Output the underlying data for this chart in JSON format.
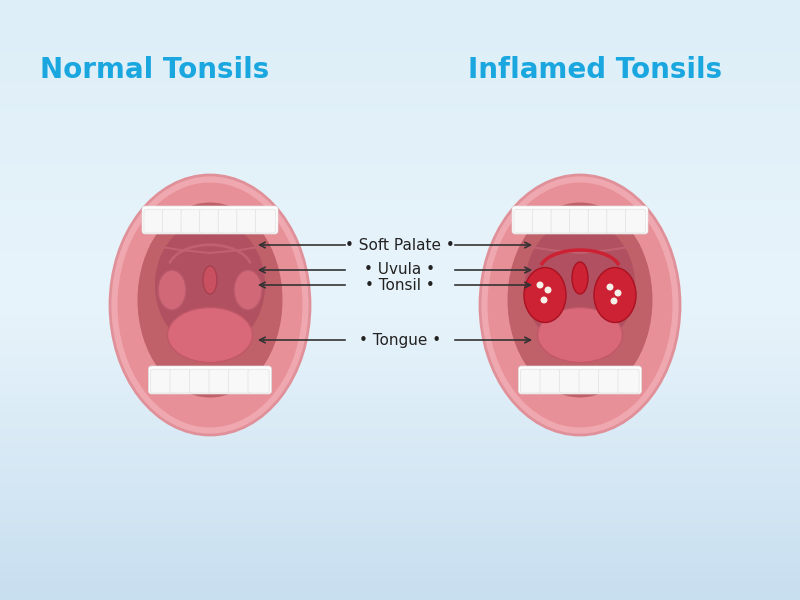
{
  "title_left": "Normal Tonsils",
  "title_right": "Inflamed Tonsils",
  "title_color": "#1aa7e0",
  "title_fontsize": 20,
  "bg_color_top": "#ddeef8",
  "bg_color_bottom": "#c8e0ef",
  "labels": [
    "Soft Palate",
    "Uvula",
    "Tonsil",
    "Tongue"
  ],
  "label_color": "#222222",
  "label_fontsize": 11,
  "outer_lip_color": "#e8848a",
  "inner_mouth_color": "#e06070",
  "throat_color": "#c85060",
  "teeth_color": "#ffffff",
  "tongue_color": "#d96878",
  "normal_tonsil_color": "#d06878",
  "inflamed_tonsil_color": "#cc2233",
  "uvula_color": "#c85060",
  "spot_color": "#f5f0e8"
}
